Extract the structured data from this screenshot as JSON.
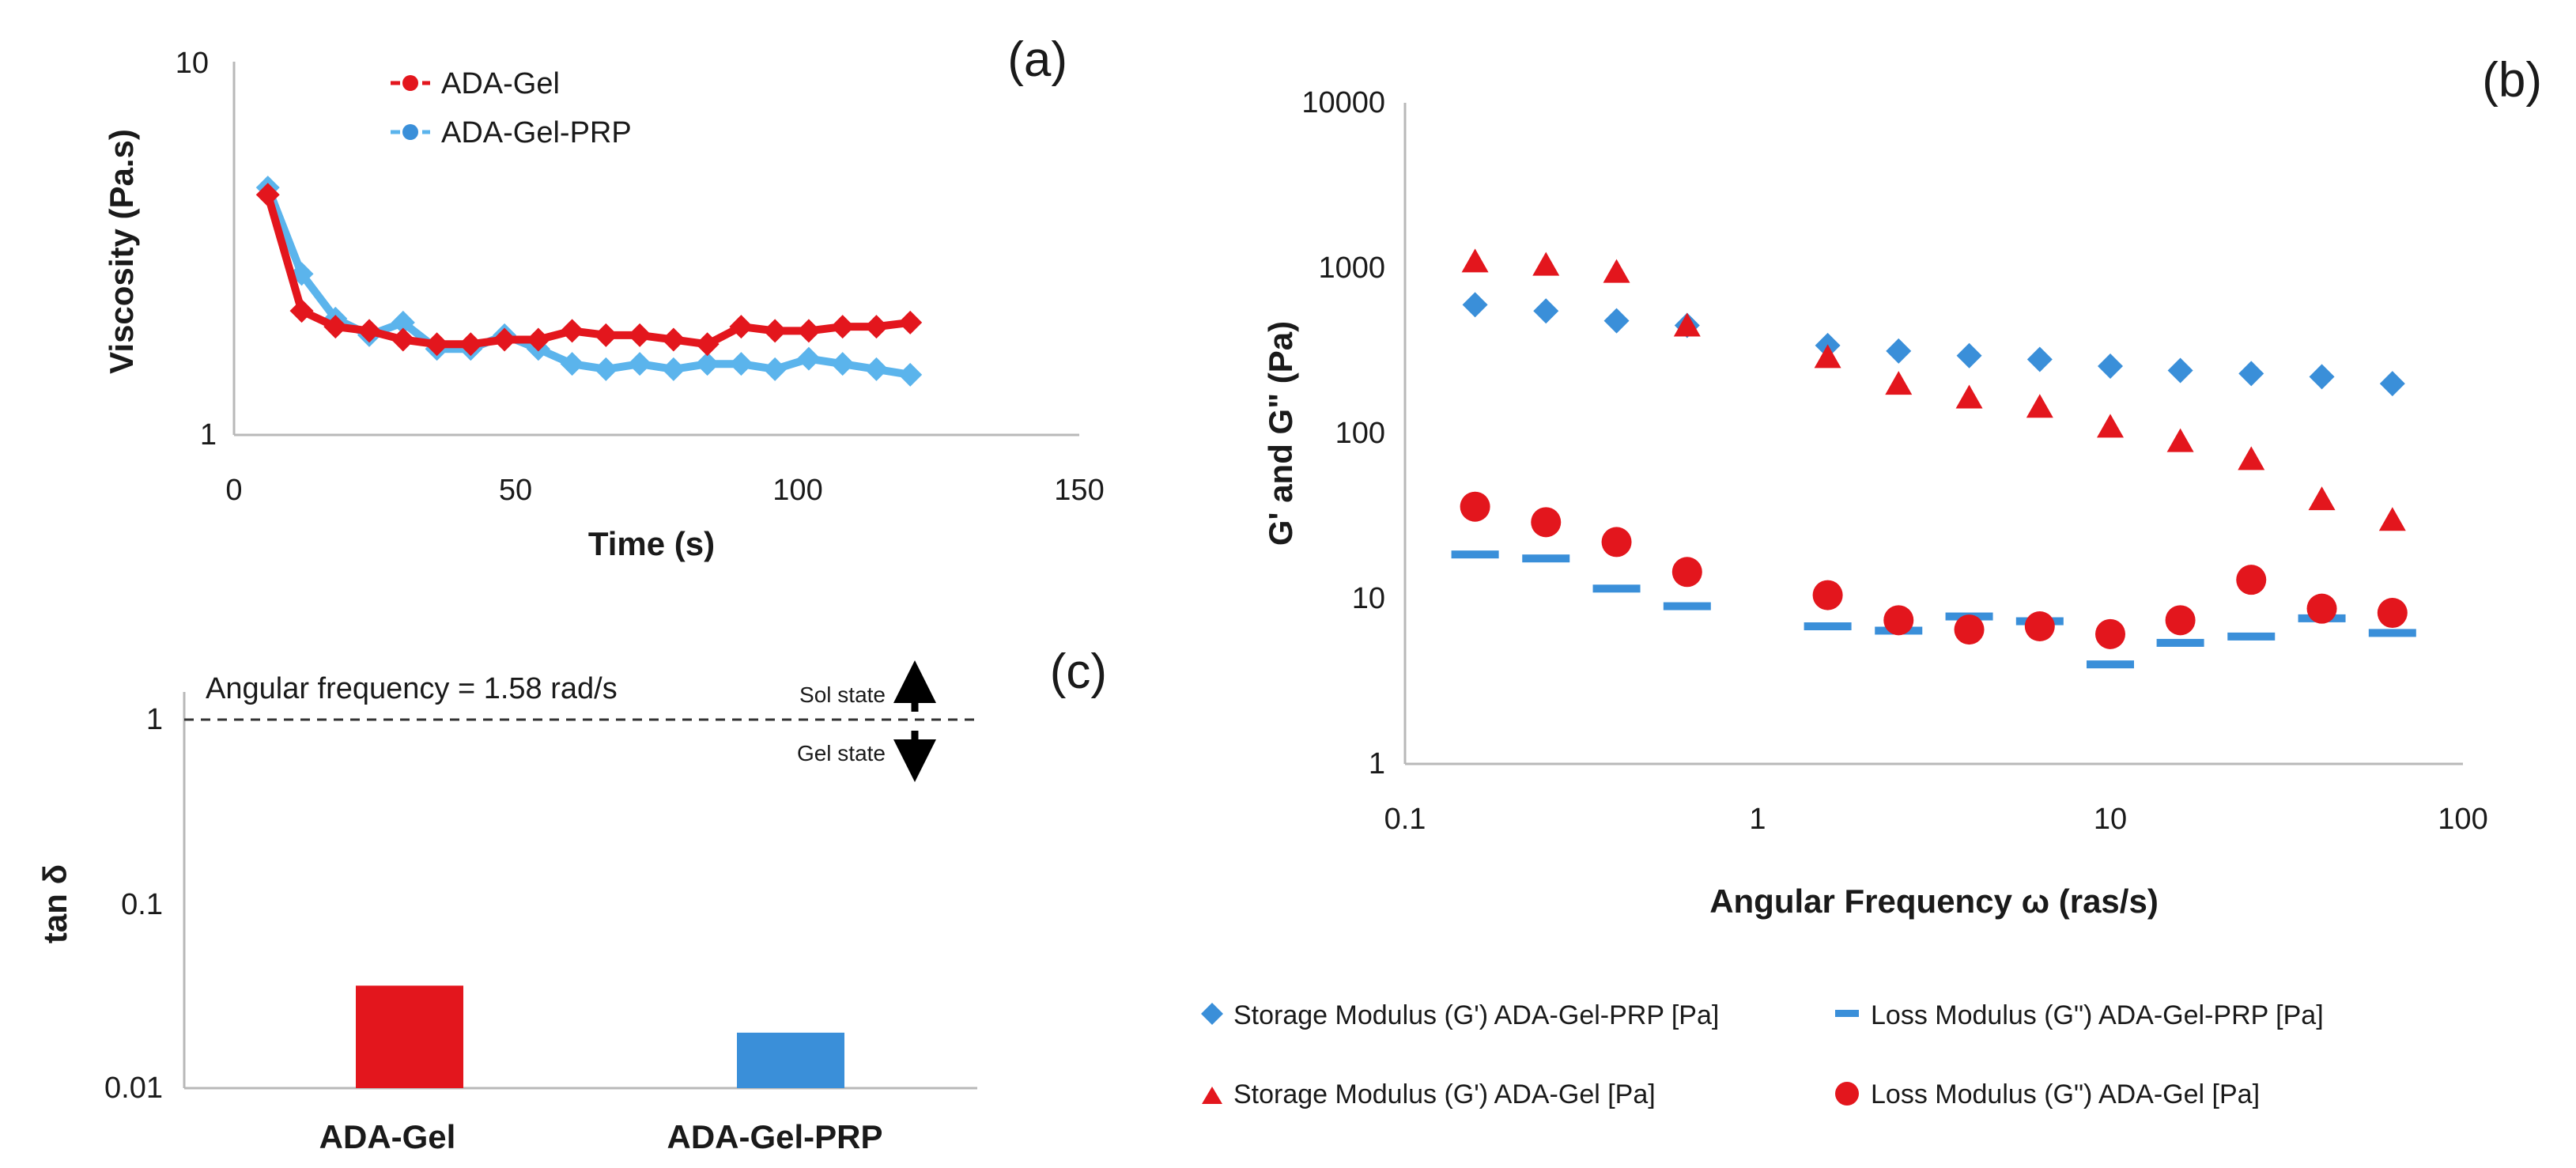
{
  "colors": {
    "red": "#e3161d",
    "blue": "#3a8fd9",
    "blue_light": "#5bb4ec",
    "axis": "#b8b8b8",
    "text": "#1a1a1a"
  },
  "chart_data": [
    {
      "id": "a",
      "panel_label": "(a)",
      "type": "line",
      "xlabel": "Time (s)",
      "ylabel": "Viscosity (Pa.s)",
      "xlim": [
        0,
        150
      ],
      "ylim": [
        1,
        10
      ],
      "yscale": "log",
      "xticks": [
        "0",
        "50",
        "100",
        "150"
      ],
      "yticks": [
        "1",
        "10"
      ],
      "legend_position": "top-left",
      "series": [
        {
          "name": "ADA-Gel",
          "color": "red",
          "x": [
            6,
            12,
            18,
            24,
            30,
            36,
            42,
            48,
            54,
            60,
            66,
            72,
            78,
            84,
            90,
            96,
            102,
            108,
            114,
            120
          ],
          "y": [
            4.4,
            2.15,
            1.95,
            1.9,
            1.8,
            1.75,
            1.75,
            1.8,
            1.8,
            1.9,
            1.85,
            1.85,
            1.8,
            1.75,
            1.95,
            1.9,
            1.9,
            1.95,
            1.95,
            2.0
          ]
        },
        {
          "name": "ADA-Gel-PRP",
          "color": "blue_light",
          "x": [
            6,
            12,
            18,
            24,
            30,
            36,
            42,
            48,
            54,
            60,
            66,
            72,
            78,
            84,
            90,
            96,
            102,
            108,
            114,
            120
          ],
          "y": [
            4.6,
            2.7,
            2.05,
            1.85,
            2.0,
            1.7,
            1.7,
            1.85,
            1.7,
            1.55,
            1.5,
            1.55,
            1.5,
            1.55,
            1.55,
            1.5,
            1.6,
            1.55,
            1.5,
            1.45
          ]
        }
      ]
    },
    {
      "id": "b",
      "panel_label": "(b)",
      "type": "scatter",
      "xlabel": "Angular Frequency ω (ras/s)",
      "ylabel": "G' and G\" (Pa)",
      "xscale": "log",
      "yscale": "log",
      "xlim": [
        0.1,
        100
      ],
      "ylim": [
        1,
        10000
      ],
      "xticks": [
        "0.1",
        "1",
        "10",
        "100"
      ],
      "yticks": [
        "1",
        "10",
        "100",
        "1000",
        "10000"
      ],
      "legend_position": "bottom",
      "series": [
        {
          "name": "Storage Modulus (G') ADA-Gel-PRP [Pa]",
          "marker": "diamond",
          "color": "blue",
          "x": [
            0.158,
            0.251,
            0.398,
            0.631,
            1.58,
            2.51,
            3.98,
            6.31,
            10,
            15.8,
            25.1,
            39.8,
            63.1
          ],
          "y": [
            600,
            550,
            480,
            450,
            340,
            315,
            295,
            280,
            255,
            240,
            230,
            220,
            200
          ]
        },
        {
          "name": "Loss Modulus (G\") ADA-Gel-PRP [Pa]",
          "marker": "dash",
          "color": "blue",
          "x": [
            0.158,
            0.251,
            0.398,
            0.631,
            1.58,
            2.51,
            3.98,
            6.31,
            10,
            15.8,
            25.1,
            39.8,
            63.1
          ],
          "y": [
            18.5,
            17.5,
            11.5,
            9.0,
            6.8,
            6.4,
            7.8,
            7.3,
            4.0,
            5.4,
            5.9,
            7.6,
            6.2
          ]
        },
        {
          "name": "Storage Modulus (G') ADA-Gel [Pa]",
          "marker": "triangle",
          "color": "red",
          "x": [
            0.158,
            0.251,
            0.398,
            0.631,
            1.58,
            2.51,
            3.98,
            6.31,
            10,
            15.8,
            25.1,
            39.8,
            63.1
          ],
          "y": [
            1100,
            1050,
            950,
            450,
            290,
            200,
            165,
            145,
            110,
            90,
            70,
            40,
            30
          ]
        },
        {
          "name": "Loss Modulus (G\") ADA-Gel [Pa]",
          "marker": "circle",
          "color": "red",
          "x": [
            0.158,
            0.251,
            0.398,
            0.631,
            1.58,
            2.51,
            3.98,
            6.31,
            10,
            15.8,
            25.1,
            39.8,
            63.1
          ],
          "y": [
            36,
            29,
            22,
            14.5,
            10.5,
            7.4,
            6.5,
            6.8,
            6.1,
            7.4,
            13,
            8.7,
            8.2
          ]
        }
      ]
    },
    {
      "id": "c",
      "panel_label": "(c)",
      "type": "bar",
      "ylabel": "tan δ",
      "yscale": "log",
      "ylim": [
        0.01,
        1
      ],
      "yticks": [
        "0.01",
        "0.1",
        "1"
      ],
      "categories": [
        "ADA-Gel",
        "ADA-Gel-PRP"
      ],
      "values": [
        0.036,
        0.02
      ],
      "bar_colors": [
        "red",
        "blue"
      ],
      "reference_line": {
        "y": 1,
        "style": "dashed"
      },
      "annotation": "Angular frequency = 1.58 rad/s",
      "sol_label": "Sol state",
      "gel_label": "Gel state"
    }
  ]
}
